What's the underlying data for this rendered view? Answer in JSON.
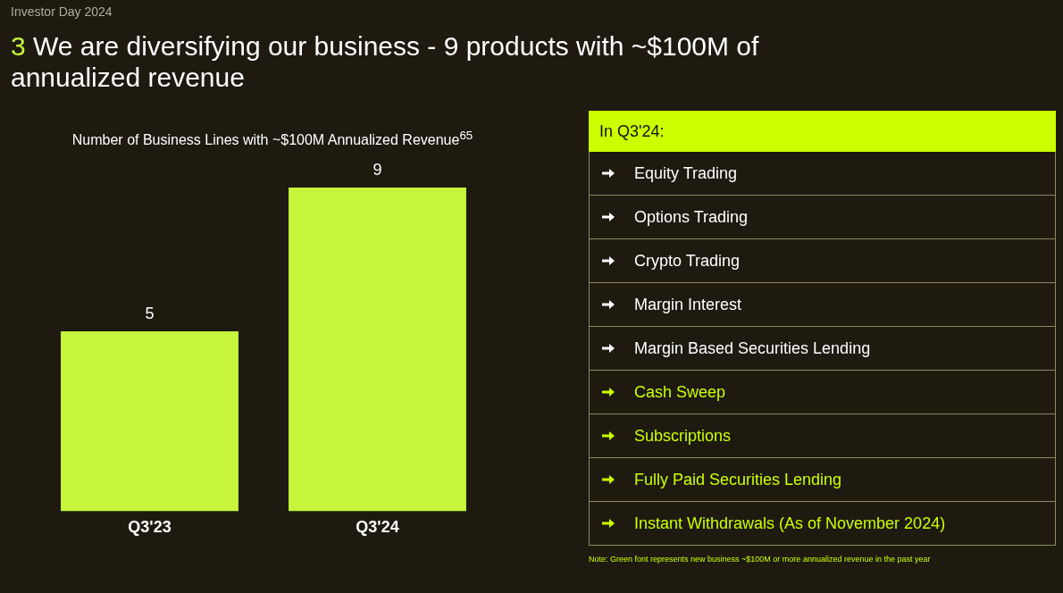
{
  "chart_data": [
    {
      "type": "bar",
      "title": "3 We are diversifying our business - 9 products with ~$100M of annualized revenue",
      "subtitle": "Number of Business Lines with ~$100M Annualized Revenue$^{65}$",
      "annotations": [
        "Investor Day 2024"
      ],
      "categories": [
        "Q3'23",
        "Q3'24"
      ],
      "values": [
        5,
        9
      ],
      "color": "#c6f53c",
      "data_labels": true
    },
    {
      "type": "other",
      "title": "In Q3'24:",
      "categories": [
        "Equity Trading",
        "Options Trading",
        "Crypto Trading",
        "Margin Interest",
        "Margin Based Securities Lending",
        "Cash Sweep",
        "Subscriptions",
        "Fully Paid Securities Lending",
        "Instant Withdrawals (As of November 2024)"
      ],
      "colors": [
        "#ffffff",
        "#ffffff",
        "#ffffff",
        "#ffffff",
        "#ffffff",
        "#ccff00",
        "#ccff00",
        "#ccff00",
        "#ccff00"
      ],
      "annotations": [
        "Note: Green font represents new business ~$100M or more annualized revenue in the past year"
      ]
    }
  ]
}
